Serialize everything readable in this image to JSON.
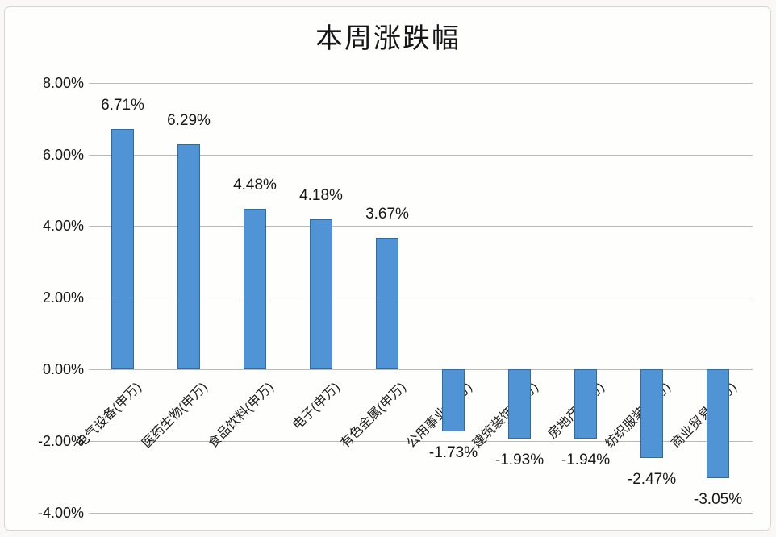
{
  "chart_data": {
    "type": "bar",
    "title": "本周涨跌幅",
    "categories": [
      "电气设备(申万)",
      "医药生物(申万)",
      "食品饮料(申万)",
      "电子(申万)",
      "有色金属(申万)",
      "公用事业(申万)",
      "建筑装饰(申万)",
      "房地产(申万)",
      "纺织服装(申万)",
      "商业贸易(申万)"
    ],
    "values": [
      6.71,
      6.29,
      4.48,
      4.18,
      3.67,
      -1.73,
      -1.93,
      -1.94,
      -2.47,
      -3.05
    ],
    "value_labels": [
      "6.71%",
      "6.29%",
      "4.48%",
      "4.18%",
      "3.67%",
      "-1.73%",
      "-1.93%",
      "-1.94%",
      "-2.47%",
      "-3.05%"
    ],
    "xlabel": "",
    "ylabel": "",
    "ylim": [
      -4,
      8
    ],
    "y_ticks": [
      8,
      6,
      4,
      2,
      0,
      -2,
      -4
    ],
    "y_tick_labels": [
      "8.00%",
      "6.00%",
      "4.00%",
      "2.00%",
      "0.00%",
      "-2.00%",
      "-4.00%"
    ],
    "grid": true,
    "legend": false,
    "bar_fill_color": "#5094d6",
    "bar_border_color": "#2e6da4",
    "gridline_color": "#b9b9b9",
    "text_color": "#161616"
  }
}
